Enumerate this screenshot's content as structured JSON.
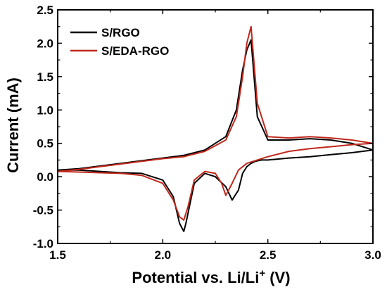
{
  "chart_data": {
    "type": "line",
    "xlabel_main": "Potential vs. Li/Li",
    "xlabel_sup": "+",
    "xlabel_unit": " (V)",
    "ylabel": "Current (mA)",
    "xlim": [
      1.5,
      3.0
    ],
    "ylim": [
      -1.0,
      2.5
    ],
    "xticks": [
      "1.5",
      "2.0",
      "2.5",
      "3.0"
    ],
    "yticks": [
      "-1.0",
      "-0.5",
      "0.0",
      "0.5",
      "1.0",
      "1.5",
      "2.0",
      "2.5"
    ],
    "grid": false,
    "legend_position": "top-left",
    "series": [
      {
        "name": "S/RGO",
        "color": "#000000",
        "x": [
          1.5,
          1.6,
          1.7,
          1.8,
          1.9,
          2.0,
          2.05,
          2.08,
          2.1,
          2.11,
          2.15,
          2.2,
          2.25,
          2.3,
          2.33,
          2.36,
          2.38,
          2.4,
          2.42,
          2.44,
          2.47,
          2.5,
          2.6,
          2.7,
          2.8,
          2.9,
          3.0,
          2.9,
          2.8,
          2.7,
          2.6,
          2.5,
          2.45,
          2.42,
          2.4,
          2.38,
          2.35,
          2.3,
          2.2,
          2.1,
          2.0,
          1.9,
          1.8,
          1.7,
          1.6,
          1.5
        ],
        "y": [
          0.1,
          0.1,
          0.08,
          0.06,
          0.05,
          -0.05,
          -0.3,
          -0.7,
          -0.82,
          -0.7,
          -0.1,
          0.05,
          0.0,
          -0.15,
          -0.35,
          -0.2,
          0.05,
          0.15,
          0.2,
          0.23,
          0.25,
          0.25,
          0.28,
          0.3,
          0.33,
          0.36,
          0.4,
          0.5,
          0.55,
          0.57,
          0.55,
          0.55,
          0.9,
          2.05,
          1.9,
          1.6,
          1.0,
          0.6,
          0.4,
          0.32,
          0.28,
          0.24,
          0.2,
          0.16,
          0.12,
          0.1
        ]
      },
      {
        "name": "S/EDA-RGO",
        "color": "#c0281c",
        "x": [
          1.5,
          1.6,
          1.7,
          1.8,
          1.9,
          2.0,
          2.05,
          2.08,
          2.1,
          2.12,
          2.15,
          2.2,
          2.25,
          2.28,
          2.3,
          2.33,
          2.36,
          2.4,
          2.45,
          2.5,
          2.6,
          2.7,
          2.8,
          2.9,
          3.0,
          2.9,
          2.8,
          2.7,
          2.6,
          2.5,
          2.45,
          2.42,
          2.4,
          2.38,
          2.35,
          2.3,
          2.2,
          2.1,
          2.0,
          1.9,
          1.8,
          1.7,
          1.6,
          1.5
        ],
        "y": [
          0.08,
          0.07,
          0.06,
          0.05,
          0.02,
          -0.1,
          -0.35,
          -0.6,
          -0.65,
          -0.45,
          -0.05,
          0.08,
          0.05,
          -0.1,
          -0.28,
          -0.1,
          0.1,
          0.2,
          0.25,
          0.3,
          0.38,
          0.42,
          0.45,
          0.48,
          0.5,
          0.55,
          0.58,
          0.6,
          0.58,
          0.6,
          1.1,
          2.25,
          2.0,
          1.5,
          0.9,
          0.55,
          0.38,
          0.3,
          0.27,
          0.23,
          0.19,
          0.15,
          0.11,
          0.08
        ]
      }
    ]
  }
}
